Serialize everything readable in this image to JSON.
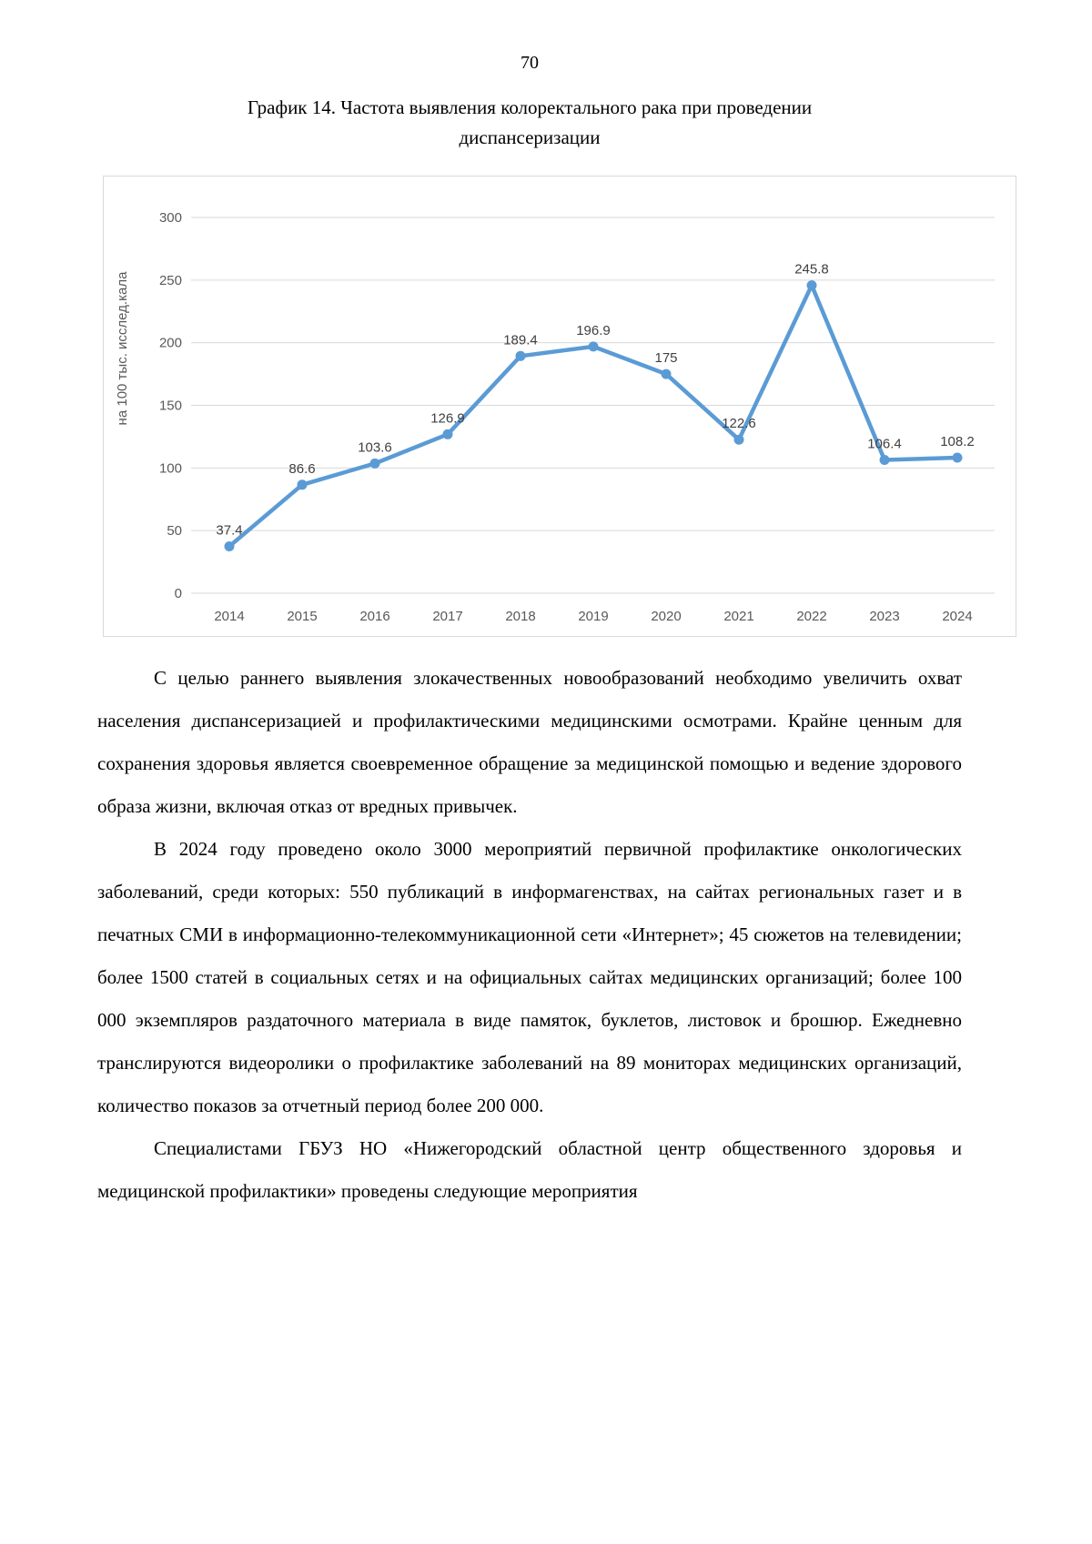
{
  "page": {
    "number": "70"
  },
  "figure": {
    "title_line1": "График 14. Частота выявления колоректального рака при проведении",
    "title_line2": "диспансеризации"
  },
  "chart_data": {
    "type": "line",
    "categories": [
      "2014",
      "2015",
      "2016",
      "2017",
      "2018",
      "2019",
      "2020",
      "2021",
      "2022",
      "2023",
      "2024"
    ],
    "values": [
      37.4,
      86.6,
      103.6,
      126.9,
      189.4,
      196.9,
      175,
      122.6,
      245.8,
      106.4,
      108.2
    ],
    "title": "",
    "xlabel": "",
    "ylabel": "на 100 тыс. исслед.кала",
    "ylim": [
      0,
      300
    ],
    "ytick_step": 50,
    "grid": true,
    "legend": false,
    "line_color": "#5B9BD5",
    "marker": "circle",
    "grid_color": "#D9D9D9",
    "frame_color": "#D9D9D9",
    "tick_color": "#595959",
    "data_label_color": "#404040"
  },
  "body": {
    "paragraphs": [
      "С целью раннего выявления злокачественных новообразований необходимо увеличить охват населения диспансеризацией и профилактическими медицинскими осмотрами. Крайне ценным для сохранения здоровья является своевременное обращение за медицинской помощью и ведение здорового образа жизни, включая отказ от вредных привычек.",
      "В 2024 году проведено около 3000 мероприятий первичной профилактике онкологических заболеваний, среди которых: 550 публикаций в информагенствах, на сайтах региональных газет и в печатных СМИ в информационно-телекоммуникационной сети «Интернет»; 45 сюжетов на телевидении; более 1500 статей в социальных сетях и на официальных сайтах медицинских организаций; более 100 000 экземпляров раздаточного материала в виде памяток, буклетов, листовок и брошюр. Ежедневно транслируются видеоролики о профилактике заболеваний на 89 мониторах медицинских организаций, количество показов за отчетный период более 200 000.",
      "Специалистами ГБУЗ НО «Нижегородский областной центр общественного здоровья и медицинской профилактики» проведены следующие мероприятия"
    ]
  }
}
